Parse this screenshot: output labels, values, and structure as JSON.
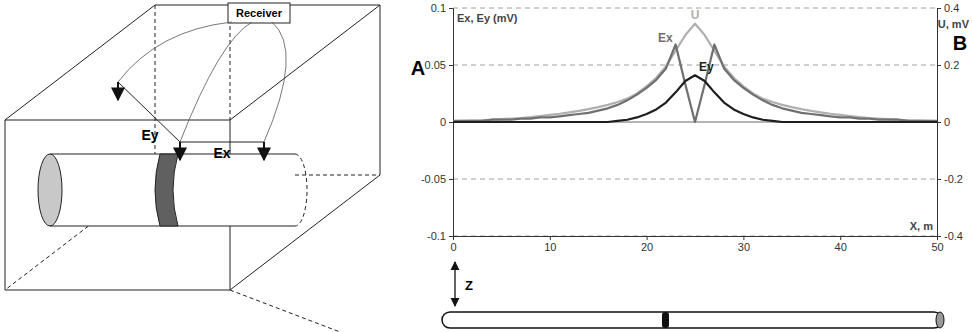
{
  "panels": {
    "a": {
      "label": "A",
      "receiver": "Receiver",
      "ex_label": "Ex",
      "ey_label": "Ey"
    },
    "b": {
      "label": "B",
      "depth_label": "Z"
    }
  },
  "chart_data": {
    "type": "line",
    "x_label": "X, m",
    "y_label": "Ex, Ey (mV)",
    "y2_label": "U, mV",
    "x": [
      0,
      1,
      2,
      3,
      4,
      5,
      6,
      7,
      8,
      9,
      10,
      11,
      12,
      13,
      14,
      15,
      16,
      17,
      18,
      19,
      20,
      21,
      22,
      23,
      24,
      25,
      26,
      27,
      28,
      29,
      30,
      31,
      32,
      33,
      34,
      35,
      36,
      37,
      38,
      39,
      40,
      41,
      42,
      43,
      44,
      45,
      46,
      47,
      48,
      49,
      50
    ],
    "xlim": [
      0,
      50
    ],
    "xticks": [
      0,
      10,
      20,
      30,
      40,
      50
    ],
    "ylim": [
      -0.1,
      0.1
    ],
    "yticks": [
      -0.1,
      -0.05,
      0,
      0.05,
      0.1
    ],
    "y2lim": [
      -0.4,
      0.4
    ],
    "y2ticks": [
      -0.4,
      -0.2,
      0,
      0.2,
      0.4
    ],
    "grid": true,
    "series": [
      {
        "name": "U",
        "color": "#b0b0b0",
        "axis": "y2",
        "values": [
          0.003,
          0.004,
          0.005,
          0.006,
          0.008,
          0.01,
          0.012,
          0.014,
          0.017,
          0.021,
          0.025,
          0.029,
          0.034,
          0.039,
          0.045,
          0.052,
          0.06,
          0.07,
          0.082,
          0.1,
          0.125,
          0.155,
          0.195,
          0.25,
          0.305,
          0.345,
          0.305,
          0.25,
          0.195,
          0.155,
          0.125,
          0.1,
          0.082,
          0.07,
          0.06,
          0.052,
          0.045,
          0.039,
          0.034,
          0.029,
          0.025,
          0.021,
          0.017,
          0.014,
          0.012,
          0.01,
          0.008,
          0.006,
          0.005,
          0.004,
          0.003
        ]
      },
      {
        "name": "Ex",
        "color": "#707070",
        "values": [
          0.001,
          0.001,
          0.001,
          0.001,
          0.002,
          0.002,
          0.002,
          0.003,
          0.003,
          0.004,
          0.004,
          0.005,
          0.006,
          0.007,
          0.008,
          0.01,
          0.012,
          0.015,
          0.019,
          0.024,
          0.03,
          0.037,
          0.047,
          0.068,
          0.033,
          0,
          0.033,
          0.068,
          0.047,
          0.037,
          0.03,
          0.024,
          0.019,
          0.015,
          0.012,
          0.01,
          0.008,
          0.007,
          0.006,
          0.005,
          0.004,
          0.004,
          0.003,
          0.003,
          0.002,
          0.002,
          0.002,
          0.001,
          0.001,
          0.001,
          0.001
        ]
      },
      {
        "name": "Ey",
        "color": "#1e1e1e",
        "values": [
          0,
          0,
          0,
          0,
          0,
          0,
          0,
          0,
          0,
          0,
          0,
          0,
          0,
          0,
          0,
          0,
          0,
          0.001,
          0.002,
          0.004,
          0.007,
          0.011,
          0.017,
          0.026,
          0.036,
          0.041,
          0.036,
          0.026,
          0.017,
          0.011,
          0.007,
          0.004,
          0.002,
          0.001,
          0,
          0,
          0,
          0,
          0,
          0,
          0,
          0,
          0,
          0,
          0,
          0,
          0,
          0,
          0,
          0,
          0
        ]
      }
    ]
  }
}
